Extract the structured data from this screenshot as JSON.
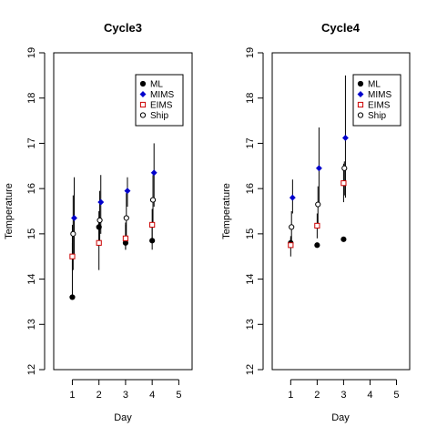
{
  "figure": {
    "ylabel": "Temperature",
    "xlabel": "Day"
  },
  "chart_data": [
    {
      "type": "scatter",
      "title": "Cycle3",
      "xlabel": "Day",
      "ylabel": "Temperature",
      "xlim": [
        0.3,
        5.5
      ],
      "ylim": [
        12,
        19
      ],
      "xticks": [
        1,
        2,
        3,
        4,
        5
      ],
      "yticks": [
        12,
        13,
        14,
        15,
        16,
        17,
        18,
        19
      ],
      "legend_position": "top-right",
      "series": [
        {
          "name": "ML",
          "marker": "filled-circle",
          "color": "#000000",
          "offset": 0.0,
          "points": [
            {
              "x": 1,
              "y": 13.6
            },
            {
              "x": 2,
              "y": 15.15
            },
            {
              "x": 3,
              "y": 14.8
            },
            {
              "x": 4,
              "y": 14.85
            }
          ],
          "errors": [
            {
              "low": 13.6,
              "high": 15.2
            },
            {
              "low": 14.75,
              "high": 15.5
            },
            {
              "low": 14.65,
              "high": 15.25
            },
            {
              "low": 14.65,
              "high": 15.15
            }
          ]
        },
        {
          "name": "MIMS",
          "marker": "filled-diamond",
          "color": "#0000cc",
          "offset": 0.07,
          "points": [
            {
              "x": 1,
              "y": 15.35
            },
            {
              "x": 2,
              "y": 15.7
            },
            {
              "x": 3,
              "y": 15.95
            },
            {
              "x": 4,
              "y": 16.35
            }
          ],
          "errors": [
            {
              "low": 14.5,
              "high": 16.25
            },
            {
              "low": 15.0,
              "high": 16.3
            },
            {
              "low": 15.6,
              "high": 16.25
            },
            {
              "low": 15.6,
              "high": 17.0
            }
          ]
        },
        {
          "name": "EIMS",
          "marker": "open-square",
          "color": "#cc0000",
          "offset": 0.0,
          "points": [
            {
              "x": 1,
              "y": 14.5
            },
            {
              "x": 2,
              "y": 14.8
            },
            {
              "x": 3,
              "y": 14.9
            },
            {
              "x": 4,
              "y": 15.2
            }
          ],
          "errors": [
            {
              "low": 14.2,
              "high": 14.8
            },
            {
              "low": 14.2,
              "high": 15.3
            },
            {
              "low": 14.65,
              "high": 15.2
            },
            {
              "low": 14.9,
              "high": 15.55
            }
          ]
        },
        {
          "name": "Ship",
          "marker": "open-circle",
          "color": "#000000",
          "offset": 0.03,
          "points": [
            {
              "x": 1,
              "y": 15.0
            },
            {
              "x": 2,
              "y": 15.3
            },
            {
              "x": 3,
              "y": 15.35
            },
            {
              "x": 4,
              "y": 15.75
            }
          ],
          "errors": [
            {
              "low": 14.2,
              "high": 15.85
            },
            {
              "low": 14.8,
              "high": 15.95
            },
            {
              "low": 14.9,
              "high": 15.9
            },
            {
              "low": 15.2,
              "high": 16.3
            }
          ]
        }
      ]
    },
    {
      "type": "scatter",
      "title": "Cycle4",
      "xlabel": "Day",
      "ylabel": "Temperature",
      "xlim": [
        0.3,
        5.5
      ],
      "ylim": [
        12,
        19
      ],
      "xticks": [
        1,
        2,
        3,
        4,
        5
      ],
      "yticks": [
        12,
        13,
        14,
        15,
        16,
        17,
        18,
        19
      ],
      "legend_position": "top-right",
      "series": [
        {
          "name": "ML",
          "marker": "filled-circle",
          "color": "#000000",
          "offset": 0.0,
          "points": [
            {
              "x": 1,
              "y": 14.8
            },
            {
              "x": 2,
              "y": 14.75
            },
            {
              "x": 3,
              "y": 14.88
            }
          ],
          "errors": [
            {
              "low": 14.7,
              "high": 14.9
            },
            {
              "low": 14.7,
              "high": 14.8
            },
            {
              "low": 14.85,
              "high": 14.92
            }
          ]
        },
        {
          "name": "MIMS",
          "marker": "filled-diamond",
          "color": "#0000cc",
          "offset": 0.07,
          "points": [
            {
              "x": 1,
              "y": 15.8
            },
            {
              "x": 2,
              "y": 16.45
            },
            {
              "x": 3,
              "y": 17.12
            }
          ],
          "errors": [
            {
              "low": 15.45,
              "high": 16.2
            },
            {
              "low": 15.7,
              "high": 17.35
            },
            {
              "low": 15.8,
              "high": 18.5
            }
          ]
        },
        {
          "name": "EIMS",
          "marker": "open-square",
          "color": "#cc0000",
          "offset": 0.0,
          "points": [
            {
              "x": 1,
              "y": 14.75
            },
            {
              "x": 2,
              "y": 15.18
            },
            {
              "x": 3,
              "y": 16.12
            }
          ],
          "errors": [
            {
              "low": 14.5,
              "high": 14.95
            },
            {
              "low": 14.9,
              "high": 15.45
            },
            {
              "low": 15.7,
              "high": 16.55
            }
          ]
        },
        {
          "name": "Ship",
          "marker": "open-circle",
          "color": "#000000",
          "offset": 0.03,
          "points": [
            {
              "x": 1,
              "y": 15.15
            },
            {
              "x": 2,
              "y": 15.65
            },
            {
              "x": 3,
              "y": 16.45
            }
          ],
          "errors": [
            {
              "low": 14.8,
              "high": 15.5
            },
            {
              "low": 15.2,
              "high": 16.05
            },
            {
              "low": 15.85,
              "high": 16.6
            }
          ]
        }
      ]
    }
  ]
}
